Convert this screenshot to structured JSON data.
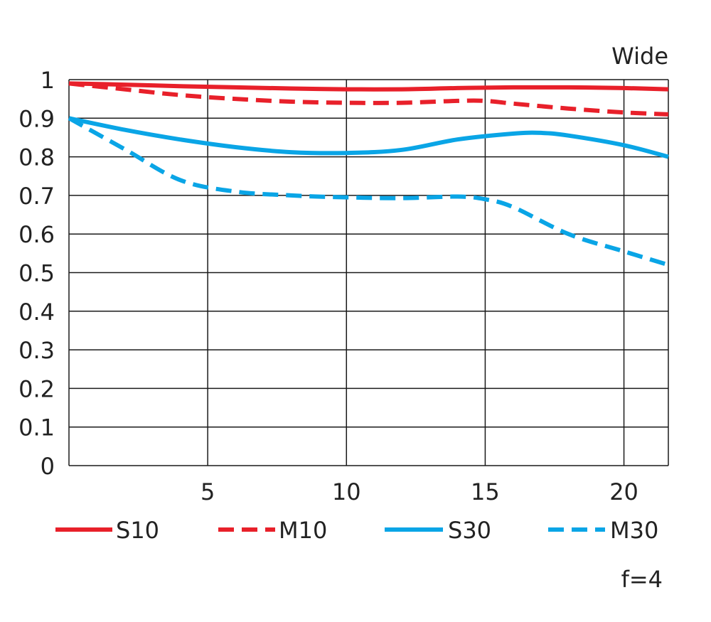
{
  "chart_data": {
    "type": "line",
    "title": "Wide",
    "note": "f=4",
    "xlabel": "",
    "ylabel": "",
    "xlim": [
      0,
      21.6
    ],
    "ylim": [
      0,
      1
    ],
    "x_ticks": [
      5,
      10,
      15,
      20
    ],
    "x_tick_labels": [
      "5",
      "10",
      "15",
      "20"
    ],
    "y_ticks": [
      0,
      0.1,
      0.2,
      0.3,
      0.4,
      0.5,
      0.6,
      0.7,
      0.8,
      0.9,
      1
    ],
    "y_tick_labels": [
      "0",
      "0.1",
      "0.2",
      "0.3",
      "0.4",
      "0.5",
      "0.6",
      "0.7",
      "0.8",
      "0.9",
      "1"
    ],
    "grid": true,
    "legend_position": "bottom",
    "series": [
      {
        "name": "S10",
        "color": "#e8202a",
        "style": "solid",
        "x": [
          0,
          2,
          4,
          6,
          8,
          10,
          12,
          14,
          16,
          18,
          20,
          21.6
        ],
        "y": [
          0.99,
          0.987,
          0.983,
          0.98,
          0.977,
          0.975,
          0.975,
          0.978,
          0.98,
          0.98,
          0.978,
          0.975
        ]
      },
      {
        "name": "M10",
        "color": "#e8202a",
        "style": "dashed",
        "x": [
          0,
          2,
          4,
          6,
          8,
          10,
          12,
          14,
          15,
          16,
          18,
          20,
          21.6
        ],
        "y": [
          0.99,
          0.975,
          0.96,
          0.95,
          0.943,
          0.94,
          0.94,
          0.945,
          0.945,
          0.938,
          0.925,
          0.915,
          0.91
        ]
      },
      {
        "name": "S30",
        "color": "#0aa5e6",
        "style": "solid",
        "x": [
          0,
          2,
          4,
          6,
          8,
          10,
          12,
          14,
          16,
          17,
          18,
          20,
          21.6
        ],
        "y": [
          0.9,
          0.87,
          0.845,
          0.825,
          0.812,
          0.81,
          0.818,
          0.845,
          0.86,
          0.862,
          0.855,
          0.83,
          0.8
        ]
      },
      {
        "name": "M30",
        "color": "#0aa5e6",
        "style": "dashed",
        "x": [
          0,
          2,
          4,
          6,
          8,
          10,
          12,
          14,
          15,
          16,
          18,
          20,
          21.6
        ],
        "y": [
          0.9,
          0.82,
          0.74,
          0.71,
          0.7,
          0.695,
          0.693,
          0.697,
          0.69,
          0.67,
          0.6,
          0.555,
          0.52
        ]
      }
    ]
  }
}
